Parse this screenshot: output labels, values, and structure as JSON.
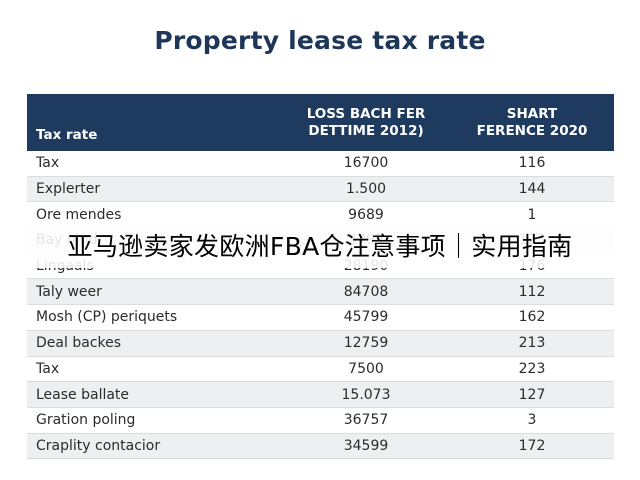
{
  "title": "Property lease tax rate",
  "table": {
    "headers": [
      "Tax rate",
      "LOSS BACH FER\nDETTIME 2012)",
      "SHART\nFERENCE 2020"
    ],
    "rows": [
      [
        "Tax",
        "16700",
        "116"
      ],
      [
        "Explerter",
        "1.500",
        "144"
      ],
      [
        "Ore mendes",
        "9689",
        "1"
      ],
      [
        "Bay bind",
        "3799",
        "123"
      ],
      [
        "Lingaals",
        "28190",
        "176"
      ],
      [
        "Taly weer",
        "84708",
        "112"
      ],
      [
        "Mosh (CP) periquets",
        "45799",
        "162"
      ],
      [
        "Deal backes",
        "12759",
        "213"
      ],
      [
        "Tax",
        "7500",
        "223"
      ],
      [
        "Lease ballate",
        "15.073",
        "127"
      ],
      [
        "Gration poling",
        "36757",
        "3"
      ],
      [
        "Craplity contacior",
        "34599",
        "172"
      ]
    ]
  },
  "overlay_banner": "亚马逊卖家发欧洲FBA仓注意事项｜实用指南",
  "colors": {
    "header_bg": "#1f3a5f",
    "title": "#1e3658",
    "stripe": "#eeeff1"
  }
}
